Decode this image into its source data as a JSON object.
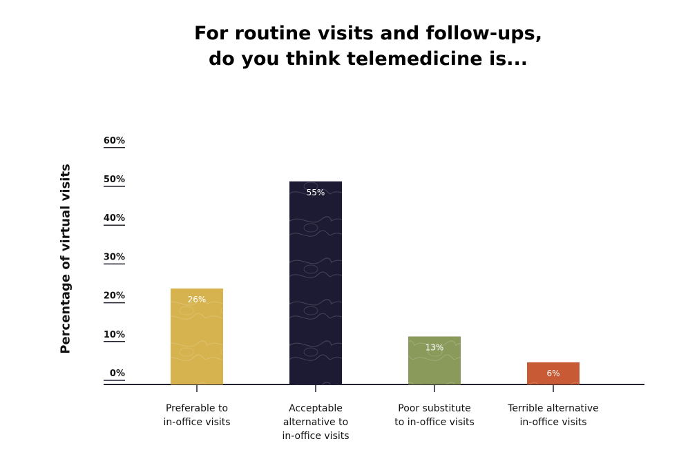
{
  "chart_data": {
    "type": "bar",
    "title_lines": [
      "For routine visits and follow-ups,",
      "do you think telemedicine is..."
    ],
    "xlabel": "",
    "ylabel": "Percentage of virtual visits",
    "ylim": [
      0,
      60
    ],
    "yticks": [
      {
        "value": 0,
        "label": "0%"
      },
      {
        "value": 10,
        "label": "10%"
      },
      {
        "value": 20,
        "label": "20%"
      },
      {
        "value": 30,
        "label": "30%"
      },
      {
        "value": 40,
        "label": "40%"
      },
      {
        "value": 50,
        "label": "50%"
      },
      {
        "value": 60,
        "label": "60%"
      }
    ],
    "categories": [
      [
        "Preferable to",
        "in-office visits"
      ],
      [
        "Acceptable",
        "alternative to",
        "in-office visits"
      ],
      [
        "Poor substitute",
        "to in-office visits"
      ],
      [
        "Terrible alternative",
        "in-office visits"
      ]
    ],
    "values": [
      26,
      55,
      13,
      6
    ],
    "data_labels": [
      "26%",
      "55%",
      "13%",
      "6%"
    ],
    "colors": [
      "#d6b34f",
      "#1c1b33",
      "#8a9a5b",
      "#c85a35"
    ],
    "grid": false,
    "legend": "none"
  }
}
